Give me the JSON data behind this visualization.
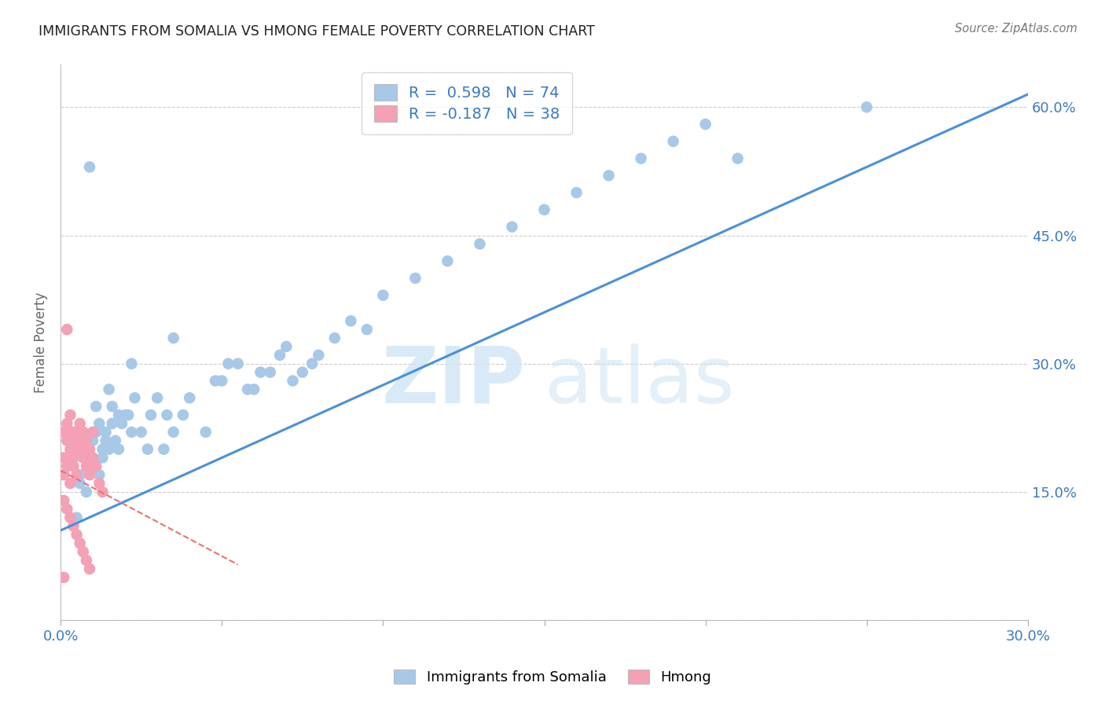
{
  "title": "IMMIGRANTS FROM SOMALIA VS HMONG FEMALE POVERTY CORRELATION CHART",
  "source": "Source: ZipAtlas.com",
  "ylabel": "Female Poverty",
  "xlim": [
    0.0,
    0.3
  ],
  "ylim": [
    0.0,
    0.65
  ],
  "x_ticks": [
    0.0,
    0.05,
    0.1,
    0.15,
    0.2,
    0.25,
    0.3
  ],
  "x_tick_labels": [
    "0.0%",
    "",
    "",
    "",
    "",
    "",
    "30.0%"
  ],
  "y_ticks": [
    0.0,
    0.15,
    0.3,
    0.45,
    0.6
  ],
  "y_tick_labels_right": [
    "",
    "15.0%",
    "30.0%",
    "45.0%",
    "60.0%"
  ],
  "somalia_R": 0.598,
  "somalia_N": 74,
  "hmong_R": -0.187,
  "hmong_N": 38,
  "somalia_color": "#a8c8e8",
  "hmong_color": "#f4a0b5",
  "somalia_line_color": "#4a90d9",
  "hmong_line_color": "#e87070",
  "watermark_zip": "ZIP",
  "watermark_atlas": "atlas",
  "somalia_line_x0": 0.0,
  "somalia_line_y0": 0.105,
  "somalia_line_x1": 0.3,
  "somalia_line_y1": 0.615,
  "hmong_line_x0": 0.0,
  "hmong_line_y0": 0.175,
  "hmong_line_x1": 0.055,
  "hmong_line_y1": 0.065,
  "somalia_points_x": [
    0.021,
    0.008,
    0.014,
    0.018,
    0.006,
    0.01,
    0.012,
    0.016,
    0.022,
    0.009,
    0.007,
    0.011,
    0.013,
    0.017,
    0.02,
    0.015,
    0.019,
    0.023,
    0.008,
    0.012,
    0.016,
    0.01,
    0.014,
    0.018,
    0.006,
    0.009,
    0.013,
    0.007,
    0.011,
    0.015,
    0.025,
    0.028,
    0.032,
    0.03,
    0.035,
    0.038,
    0.04,
    0.045,
    0.027,
    0.033,
    0.05,
    0.055,
    0.06,
    0.065,
    0.07,
    0.075,
    0.08,
    0.048,
    0.052,
    0.058,
    0.062,
    0.068,
    0.072,
    0.078,
    0.085,
    0.09,
    0.095,
    0.1,
    0.11,
    0.12,
    0.13,
    0.14,
    0.15,
    0.16,
    0.17,
    0.18,
    0.19,
    0.2,
    0.21,
    0.25,
    0.022,
    0.035,
    0.009,
    0.005
  ],
  "somalia_points_y": [
    0.24,
    0.19,
    0.22,
    0.2,
    0.17,
    0.21,
    0.23,
    0.25,
    0.22,
    0.18,
    0.2,
    0.22,
    0.19,
    0.21,
    0.24,
    0.2,
    0.23,
    0.26,
    0.15,
    0.17,
    0.23,
    0.19,
    0.21,
    0.24,
    0.16,
    0.18,
    0.2,
    0.22,
    0.25,
    0.27,
    0.22,
    0.24,
    0.2,
    0.26,
    0.22,
    0.24,
    0.26,
    0.22,
    0.2,
    0.24,
    0.28,
    0.3,
    0.27,
    0.29,
    0.32,
    0.29,
    0.31,
    0.28,
    0.3,
    0.27,
    0.29,
    0.31,
    0.28,
    0.3,
    0.33,
    0.35,
    0.34,
    0.38,
    0.4,
    0.42,
    0.44,
    0.46,
    0.48,
    0.5,
    0.52,
    0.54,
    0.56,
    0.58,
    0.54,
    0.6,
    0.3,
    0.33,
    0.53,
    0.12
  ],
  "hmong_points_x": [
    0.001,
    0.001,
    0.001,
    0.002,
    0.002,
    0.002,
    0.003,
    0.003,
    0.003,
    0.004,
    0.004,
    0.004,
    0.005,
    0.005,
    0.006,
    0.006,
    0.007,
    0.007,
    0.008,
    0.008,
    0.009,
    0.009,
    0.01,
    0.01,
    0.011,
    0.012,
    0.013,
    0.001,
    0.002,
    0.003,
    0.004,
    0.005,
    0.006,
    0.007,
    0.008,
    0.009,
    0.002,
    0.001
  ],
  "hmong_points_y": [
    0.22,
    0.19,
    0.17,
    0.21,
    0.18,
    0.23,
    0.2,
    0.16,
    0.24,
    0.19,
    0.22,
    0.18,
    0.21,
    0.17,
    0.2,
    0.23,
    0.19,
    0.22,
    0.18,
    0.21,
    0.17,
    0.2,
    0.19,
    0.22,
    0.18,
    0.16,
    0.15,
    0.14,
    0.13,
    0.12,
    0.11,
    0.1,
    0.09,
    0.08,
    0.07,
    0.06,
    0.34,
    0.05
  ]
}
